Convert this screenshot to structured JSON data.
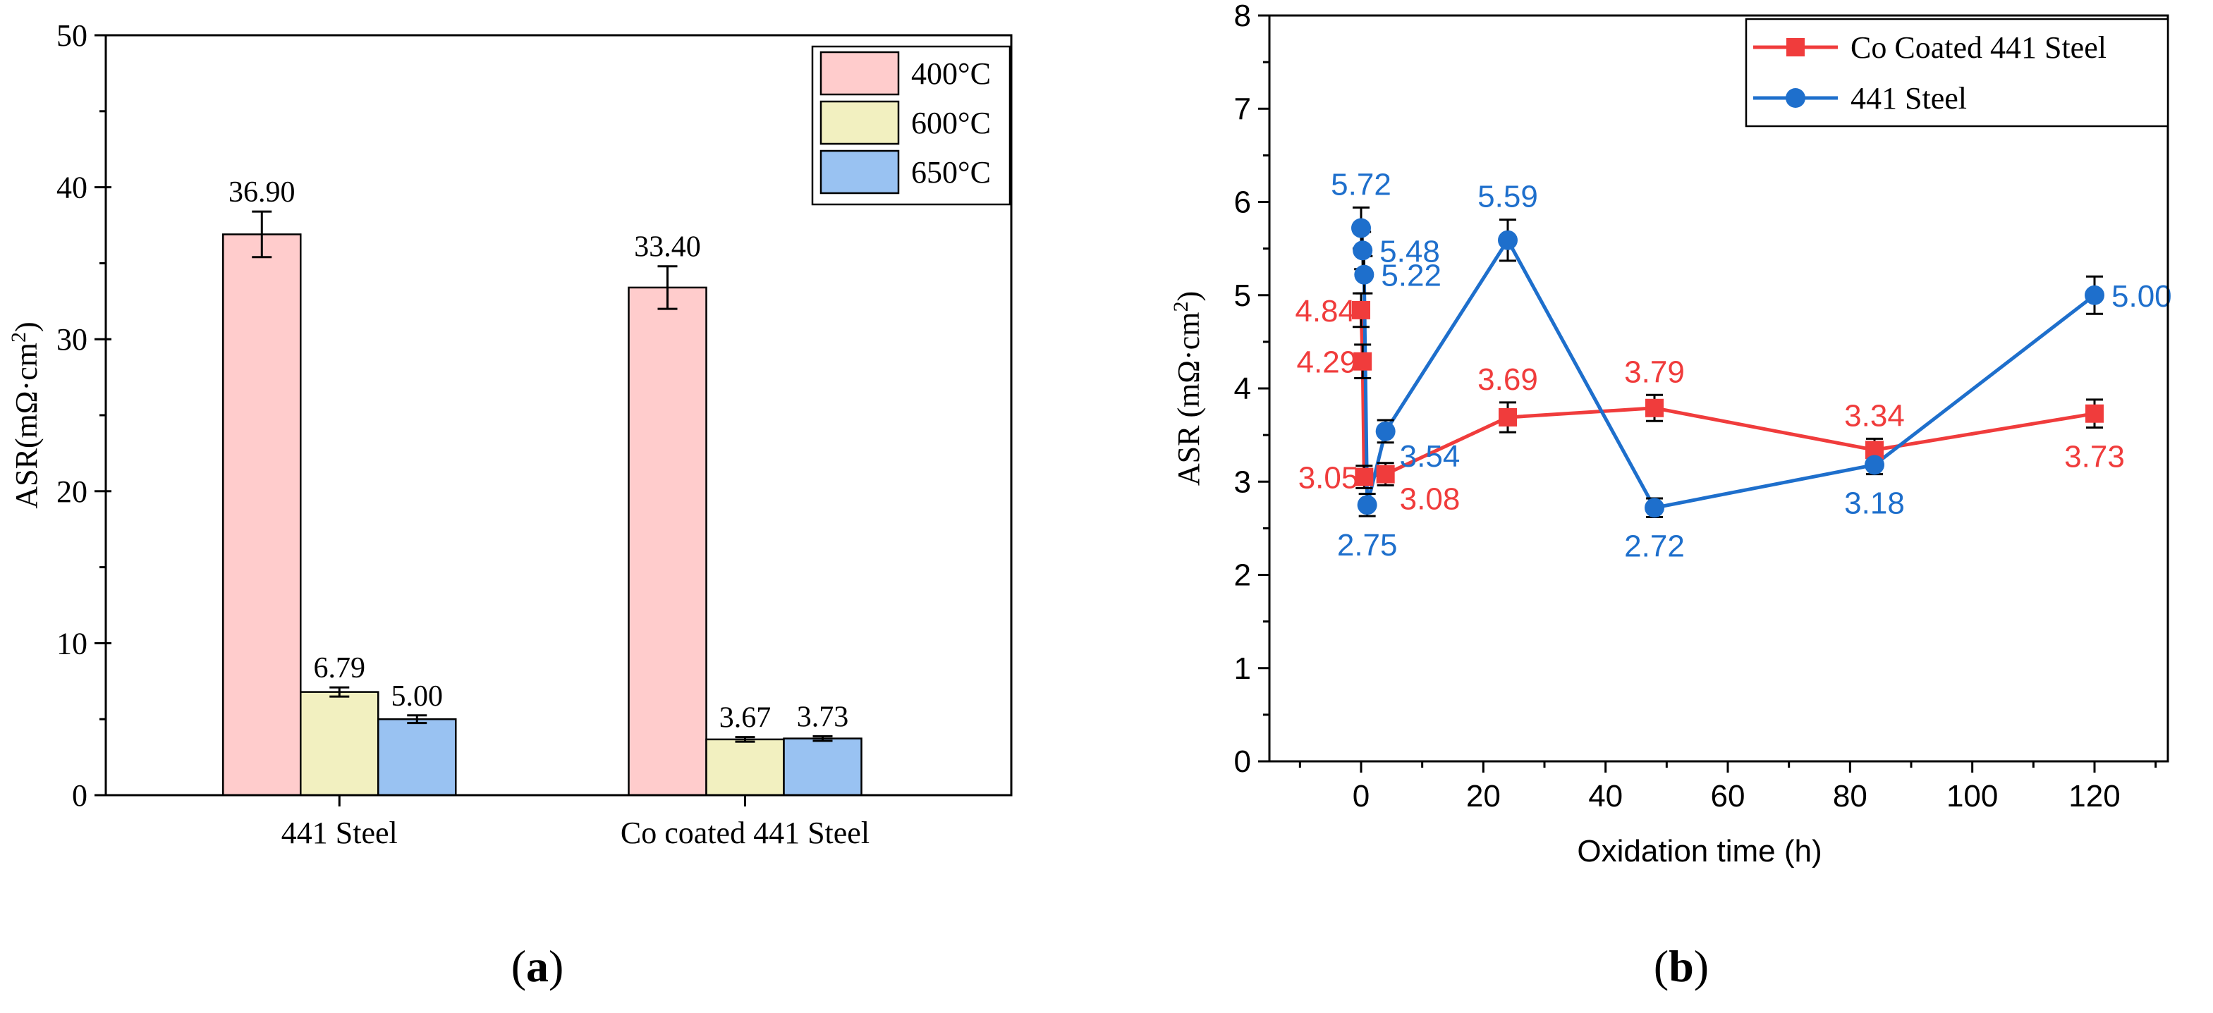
{
  "figure": {
    "panel_a_label": "a",
    "panel_b_label": "b"
  },
  "chart_data": [
    {
      "id": "a",
      "type": "bar",
      "title": "",
      "xlabel": "",
      "ylabel_prefix": "ASR(mΩ·cm",
      "ylabel_sup": "2",
      "ylabel_suffix": ")",
      "ylim": [
        0,
        50
      ],
      "yticks": [
        0,
        10,
        20,
        30,
        40,
        50
      ],
      "categories": [
        "441 Steel",
        "Co coated 441 Steel"
      ],
      "legend_position": "top-right",
      "series": [
        {
          "name": "400°C",
          "color": "#ffcccc",
          "values": [
            36.9,
            33.4
          ],
          "errors": [
            1.5,
            1.4
          ],
          "labels": [
            "36.90",
            "33.40"
          ]
        },
        {
          "name": "600°C",
          "color": "#f2f0c0",
          "values": [
            6.79,
            3.67
          ],
          "errors": [
            0.3,
            0.15
          ],
          "labels": [
            "6.79",
            "3.67"
          ]
        },
        {
          "name": "650°C",
          "color": "#99c2f2",
          "values": [
            5.0,
            3.73
          ],
          "errors": [
            0.25,
            0.15
          ],
          "labels": [
            "5.00",
            "3.73"
          ]
        }
      ]
    },
    {
      "id": "b",
      "type": "line",
      "title": "",
      "xlabel": "Oxidation time (h)",
      "ylabel_prefix": "ASR (mΩ·cm",
      "ylabel_sup": "2",
      "ylabel_suffix": ")",
      "xlim": [
        -15,
        132
      ],
      "ylim": [
        0,
        8
      ],
      "xticks": [
        0,
        20,
        40,
        60,
        80,
        100,
        120
      ],
      "yticks": [
        0,
        1,
        2,
        3,
        4,
        5,
        6,
        7,
        8
      ],
      "legend_position": "top-right",
      "series": [
        {
          "name": "Co Coated 441 Steel",
          "color": "#f03c3c",
          "marker": "square",
          "points": [
            {
              "x": 0,
              "y": 4.84,
              "err": 0.18,
              "label": "4.84",
              "lpos": "left"
            },
            {
              "x": 0.25,
              "y": 4.29,
              "err": 0.18,
              "label": "4.29",
              "lpos": "left"
            },
            {
              "x": 0.5,
              "y": 3.05,
              "err": 0.12,
              "label": "3.05",
              "lpos": "left"
            },
            {
              "x": 4,
              "y": 3.08,
              "err": 0.12,
              "label": "3.08",
              "lpos": "below-right"
            },
            {
              "x": 24,
              "y": 3.69,
              "err": 0.16,
              "label": "3.69",
              "lpos": "above"
            },
            {
              "x": 48,
              "y": 3.79,
              "err": 0.14,
              "label": "3.79",
              "lpos": "above"
            },
            {
              "x": 84,
              "y": 3.34,
              "err": 0.12,
              "label": "3.34",
              "lpos": "above"
            },
            {
              "x": 120,
              "y": 3.73,
              "err": 0.15,
              "label": "3.73",
              "lpos": "below"
            }
          ]
        },
        {
          "name": "441 Steel",
          "color": "#1e6fcc",
          "marker": "circle",
          "points": [
            {
              "x": 0,
              "y": 5.72,
              "err": 0.22,
              "label": "5.72",
              "lpos": "above"
            },
            {
              "x": 0.25,
              "y": 5.48,
              "err": 0.2,
              "label": "5.48",
              "lpos": "right"
            },
            {
              "x": 0.5,
              "y": 5.22,
              "err": 0.2,
              "label": "5.22",
              "lpos": "right"
            },
            {
              "x": 1,
              "y": 2.75,
              "err": 0.12,
              "label": "2.75",
              "lpos": "below"
            },
            {
              "x": 4,
              "y": 3.54,
              "err": 0.12,
              "label": "3.54",
              "lpos": "below-right"
            },
            {
              "x": 24,
              "y": 5.59,
              "err": 0.22,
              "label": "5.59",
              "lpos": "above"
            },
            {
              "x": 48,
              "y": 2.72,
              "err": 0.1,
              "label": "2.72",
              "lpos": "below"
            },
            {
              "x": 84,
              "y": 3.18,
              "err": 0.1,
              "label": "3.18",
              "lpos": "below"
            },
            {
              "x": 120,
              "y": 5.0,
              "err": 0.2,
              "label": "5.00",
              "lpos": "right"
            }
          ]
        }
      ]
    }
  ]
}
